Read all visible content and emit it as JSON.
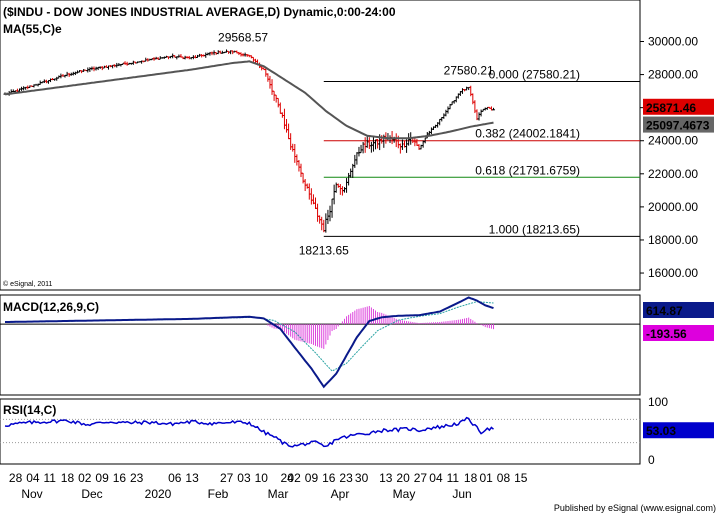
{
  "header": {
    "title": "($INDU - DOW JONES INDUSTRIAL AVERAGE,D) Dynamic,0:00-24:00",
    "ma_label": "MA(55,C)e"
  },
  "footer": {
    "copyright": "© eSignal, 2011",
    "published": "Published by eSignal (www.esignal.com)"
  },
  "colors": {
    "up": "#000000",
    "down": "#dd0000",
    "ma": "#555555",
    "macd": "#0a1a8a",
    "signal": "#2aa3a3",
    "histogram": "#dd44dd",
    "rsi": "#0000cc",
    "fib_red": "#cc0000",
    "fib_green": "#118811",
    "price_badge": "#dd0000",
    "ma_badge": "#666666",
    "macd_badge": "#0a1a8a",
    "signal_badge": "#dd00dd",
    "rsi_badge": "#0000cc"
  },
  "chart_data": [
    {
      "type": "line",
      "panel": "price",
      "style": "ohlc-bars",
      "y_axis_ticks": [
        "30000.00",
        "28000.00",
        "26000.00",
        "24000.00",
        "22000.00",
        "20000.00",
        "18000.00",
        "16000.00"
      ],
      "ylim": [
        15700,
        31300
      ],
      "x_tick_labels": [
        "28",
        "04",
        "11",
        "18",
        "02",
        "09",
        "16",
        "23",
        "06",
        "13",
        "27",
        "03",
        "10",
        "24",
        "02",
        "09",
        "16",
        "23",
        "30",
        "13",
        "20",
        "27",
        "04",
        "11",
        "18",
        "01",
        "08",
        "15"
      ],
      "month_labels": [
        "Nov",
        "Dec",
        "2020",
        "Feb",
        "Mar",
        "Apr",
        "May",
        "Jun"
      ],
      "anchor_points": [
        [
          0,
          26800
        ],
        [
          10,
          27200
        ],
        [
          20,
          27600
        ],
        [
          30,
          28000
        ],
        [
          40,
          28300
        ],
        [
          50,
          28500
        ],
        [
          60,
          28700
        ],
        [
          70,
          28900
        ],
        [
          80,
          29100
        ],
        [
          90,
          29000
        ],
        [
          100,
          29300
        ],
        [
          110,
          29400
        ],
        [
          118,
          29100
        ],
        [
          125,
          28300
        ],
        [
          129,
          27000
        ],
        [
          134,
          25500
        ],
        [
          138,
          23700
        ],
        [
          142,
          22500
        ],
        [
          145,
          21300
        ],
        [
          148,
          20400
        ],
        [
          151,
          19500
        ],
        [
          154,
          18700
        ],
        [
          157,
          19900
        ],
        [
          160,
          21500
        ],
        [
          164,
          21000
        ],
        [
          168,
          22600
        ],
        [
          172,
          23600
        ],
        [
          176,
          23800
        ],
        [
          180,
          23900
        ],
        [
          184,
          24200
        ],
        [
          188,
          24000
        ],
        [
          192,
          23700
        ],
        [
          196,
          24200
        ],
        [
          200,
          23500
        ],
        [
          204,
          24400
        ],
        [
          208,
          24900
        ],
        [
          212,
          25600
        ],
        [
          216,
          26300
        ],
        [
          220,
          27000
        ],
        [
          224,
          27200
        ],
        [
          226,
          26300
        ],
        [
          228,
          25300
        ],
        [
          230,
          25800
        ],
        [
          233,
          26000
        ],
        [
          236,
          25871
        ]
      ],
      "series": [
        {
          "name": "MA(55,C)e",
          "x": [
            0,
            30,
            60,
            90,
            110,
            118,
            125,
            135,
            145,
            155,
            165,
            175,
            185,
            195,
            205,
            215,
            225,
            236
          ],
          "values": [
            26800,
            27300,
            27800,
            28300,
            28700,
            28800,
            28500,
            27700,
            26900,
            25800,
            24900,
            24300,
            24150,
            24150,
            24300,
            24550,
            24850,
            25097.4673
          ]
        }
      ],
      "annotations": [
        {
          "label": "29568.57",
          "x": 115,
          "y": 29568.57,
          "position": "above"
        },
        {
          "label": "27580.21",
          "x": 224,
          "y": 27580.21,
          "position": "above"
        },
        {
          "label": "18213.65",
          "x": 154,
          "y": 18213.65,
          "position": "below"
        }
      ],
      "fibonacci": {
        "start_x": 154,
        "levels": [
          {
            "label": "0.000 (27580.21)",
            "value": 27580.21,
            "color": "#000000"
          },
          {
            "label": "0.382 (24002.1841)",
            "value": 24002.1841,
            "color": "#cc0000"
          },
          {
            "label": "0.618 (21791.6759)",
            "value": 21791.6759,
            "color": "#118811"
          },
          {
            "label": "1.000 (18213.65)",
            "value": 18213.65,
            "color": "#000000"
          }
        ]
      },
      "current_values": {
        "price": "25871.46",
        "ma": "25097.4673"
      }
    },
    {
      "type": "line",
      "panel": "macd",
      "label": "MACD(12,26,9,C)",
      "ylim": [
        -2600,
        1000
      ],
      "zero_line": true,
      "macd_x": [
        0,
        30,
        60,
        90,
        110,
        118,
        125,
        133,
        140,
        148,
        154,
        160,
        165,
        170,
        176,
        182,
        190,
        200,
        210,
        218,
        224,
        228,
        232,
        236
      ],
      "macd_values": [
        80,
        120,
        160,
        200,
        260,
        280,
        220,
        -180,
        -900,
        -1700,
        -2400,
        -1900,
        -1200,
        -500,
        120,
        260,
        320,
        340,
        480,
        780,
        1020,
        900,
        720,
        614.87
      ],
      "signal_x": [
        0,
        30,
        60,
        90,
        110,
        120,
        130,
        140,
        150,
        158,
        165,
        172,
        180,
        190,
        200,
        210,
        220,
        228,
        236
      ],
      "signal_values": [
        70,
        110,
        150,
        190,
        240,
        260,
        140,
        -300,
        -1100,
        -1800,
        -1500,
        -900,
        -250,
        150,
        300,
        400,
        680,
        860,
        808.43
      ],
      "values_shown": [
        "614.87",
        "-193.56"
      ]
    },
    {
      "type": "line",
      "panel": "rsi",
      "label": "RSI(14,C)",
      "ylim": [
        0,
        100
      ],
      "y_axis_ticks": [
        "100",
        "0"
      ],
      "ref_levels": [
        70,
        30
      ],
      "x": [
        0,
        10,
        20,
        30,
        40,
        50,
        60,
        70,
        80,
        90,
        100,
        110,
        118,
        125,
        130,
        135,
        140,
        145,
        150,
        155,
        160,
        165,
        170,
        175,
        180,
        185,
        190,
        195,
        200,
        205,
        210,
        215,
        220,
        224,
        227,
        230,
        233,
        236
      ],
      "values": [
        60,
        64,
        66,
        68,
        61,
        66,
        64,
        65,
        62,
        66,
        63,
        65,
        64,
        48,
        40,
        28,
        24,
        28,
        30,
        22,
        36,
        40,
        44,
        46,
        50,
        52,
        52,
        54,
        51,
        55,
        57,
        60,
        64,
        72,
        58,
        48,
        55,
        53.03
      ],
      "value_shown": "53.03"
    }
  ]
}
